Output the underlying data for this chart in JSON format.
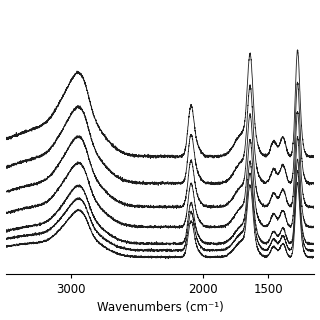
{
  "xlabel": "Wavenumbers (cm⁻¹)",
  "x_min": 1150,
  "x_max": 3500,
  "x_ticks": [
    3000,
    2000,
    1500
  ],
  "x_tick_labels": [
    "3000",
    "2000",
    "1500"
  ],
  "background_color": "#ffffff",
  "line_color": "#111111",
  "num_spectra": 7,
  "offsets": [
    0.0,
    0.04,
    0.08,
    0.18,
    0.3,
    0.44,
    0.6
  ],
  "y_min": -0.1,
  "y_max": 1.5
}
